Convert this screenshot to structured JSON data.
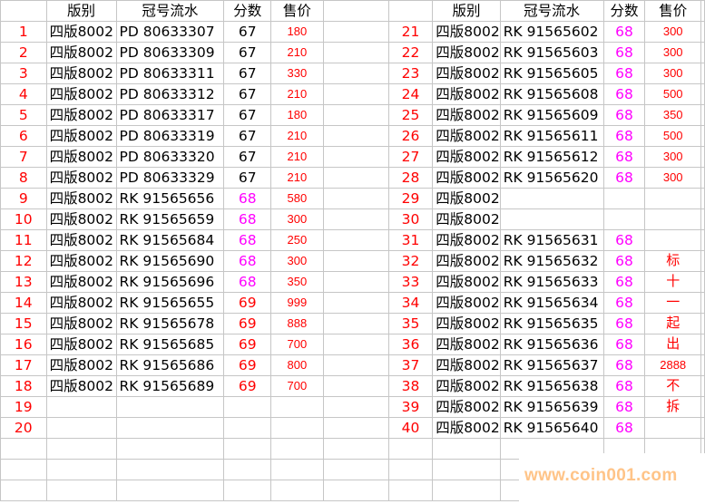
{
  "headers": {
    "edition": "版别",
    "serial": "冠号流水",
    "score": "分数",
    "price": "售价"
  },
  "colors": {
    "index": "#ff0000",
    "price": "#ff0000",
    "score_67": "#000000",
    "score_68": "#ff00ff",
    "score_69": "#ff0000"
  },
  "left_rows": [
    {
      "n": "1",
      "edition": "四版8002",
      "serial": "PD 80633307",
      "score": "67",
      "price": "180"
    },
    {
      "n": "2",
      "edition": "四版8002",
      "serial": "PD 80633309",
      "score": "67",
      "price": "210"
    },
    {
      "n": "3",
      "edition": "四版8002",
      "serial": "PD 80633311",
      "score": "67",
      "price": "330"
    },
    {
      "n": "4",
      "edition": "四版8002",
      "serial": "PD 80633312",
      "score": "67",
      "price": "210"
    },
    {
      "n": "5",
      "edition": "四版8002",
      "serial": "PD 80633317",
      "score": "67",
      "price": "180"
    },
    {
      "n": "6",
      "edition": "四版8002",
      "serial": "PD 80633319",
      "score": "67",
      "price": "210"
    },
    {
      "n": "7",
      "edition": "四版8002",
      "serial": "PD 80633320",
      "score": "67",
      "price": "210"
    },
    {
      "n": "8",
      "edition": "四版8002",
      "serial": "PD 80633329",
      "score": "67",
      "price": "210"
    },
    {
      "n": "9",
      "edition": "四版8002",
      "serial": "RK 91565656",
      "score": "68",
      "price": "580"
    },
    {
      "n": "10",
      "edition": "四版8002",
      "serial": "RK 91565659",
      "score": "68",
      "price": "300"
    },
    {
      "n": "11",
      "edition": "四版8002",
      "serial": "RK 91565684",
      "score": "68",
      "price": "250"
    },
    {
      "n": "12",
      "edition": "四版8002",
      "serial": "RK 91565690",
      "score": "68",
      "price": "300"
    },
    {
      "n": "13",
      "edition": "四版8002",
      "serial": "RK 91565696",
      "score": "68",
      "price": "350"
    },
    {
      "n": "14",
      "edition": "四版8002",
      "serial": "RK 91565655",
      "score": "69",
      "price": "999"
    },
    {
      "n": "15",
      "edition": "四版8002",
      "serial": "RK 91565678",
      "score": "69",
      "price": "888"
    },
    {
      "n": "16",
      "edition": "四版8002",
      "serial": "RK 91565685",
      "score": "69",
      "price": "700"
    },
    {
      "n": "17",
      "edition": "四版8002",
      "serial": "RK 91565686",
      "score": "69",
      "price": "800"
    },
    {
      "n": "18",
      "edition": "四版8002",
      "serial": "RK 91565689",
      "score": "69",
      "price": "700"
    },
    {
      "n": "19",
      "edition": "",
      "serial": "",
      "score": "",
      "price": ""
    },
    {
      "n": "20",
      "edition": "",
      "serial": "",
      "score": "",
      "price": ""
    }
  ],
  "right_rows": [
    {
      "n": "21",
      "edition": "四版8002",
      "serial": "RK 91565602",
      "score": "68",
      "price": "300"
    },
    {
      "n": "22",
      "edition": "四版8002",
      "serial": "RK 91565603",
      "score": "68",
      "price": "300"
    },
    {
      "n": "23",
      "edition": "四版8002",
      "serial": "RK 91565605",
      "score": "68",
      "price": "300"
    },
    {
      "n": "24",
      "edition": "四版8002",
      "serial": "RK 91565608",
      "score": "68",
      "price": "500"
    },
    {
      "n": "25",
      "edition": "四版8002",
      "serial": "RK 91565609",
      "score": "68",
      "price": "350"
    },
    {
      "n": "26",
      "edition": "四版8002",
      "serial": "RK 91565611",
      "score": "68",
      "price": "500"
    },
    {
      "n": "27",
      "edition": "四版8002",
      "serial": "RK 91565612",
      "score": "68",
      "price": "300"
    },
    {
      "n": "28",
      "edition": "四版8002",
      "serial": "RK 91565620",
      "score": "68",
      "price": "300"
    },
    {
      "n": "29",
      "edition": "四版8002",
      "serial": "",
      "score": "",
      "price": ""
    },
    {
      "n": "30",
      "edition": "四版8002",
      "serial": "",
      "score": "",
      "price": ""
    },
    {
      "n": "31",
      "edition": "四版8002",
      "serial": "RK 91565631",
      "score": "68",
      "price": ""
    },
    {
      "n": "32",
      "edition": "四版8002",
      "serial": "RK 91565632",
      "score": "68",
      "price": "标"
    },
    {
      "n": "33",
      "edition": "四版8002",
      "serial": "RK 91565633",
      "score": "68",
      "price": "十"
    },
    {
      "n": "34",
      "edition": "四版8002",
      "serial": "RK 91565634",
      "score": "68",
      "price": "一"
    },
    {
      "n": "35",
      "edition": "四版8002",
      "serial": "RK 91565635",
      "score": "68",
      "price": "起"
    },
    {
      "n": "36",
      "edition": "四版8002",
      "serial": "RK 91565636",
      "score": "68",
      "price": "出"
    },
    {
      "n": "37",
      "edition": "四版8002",
      "serial": "RK 91565637",
      "score": "68",
      "price": "2888"
    },
    {
      "n": "38",
      "edition": "四版8002",
      "serial": "RK 91565638",
      "score": "68",
      "price": "不"
    },
    {
      "n": "39",
      "edition": "四版8002",
      "serial": "RK 91565639",
      "score": "68",
      "price": "拆"
    },
    {
      "n": "40",
      "edition": "四版8002",
      "serial": "RK 91565640",
      "score": "68",
      "price": ""
    }
  ],
  "watermark": "www.coin001.com"
}
